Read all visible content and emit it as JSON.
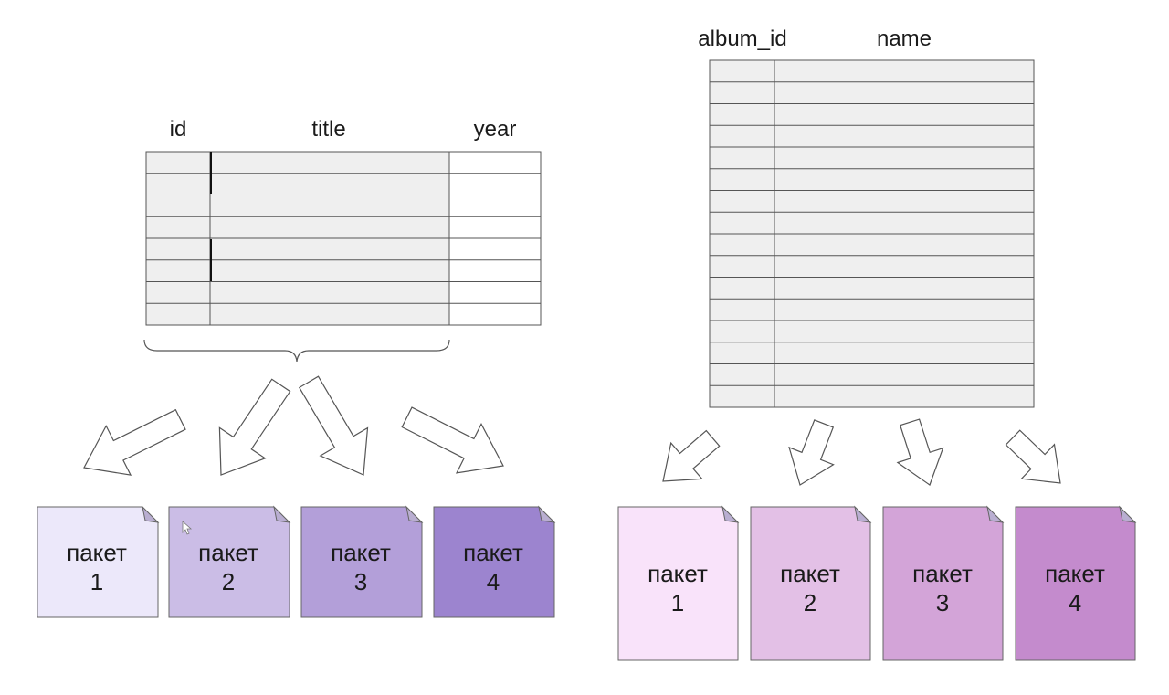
{
  "left_table": {
    "columns": [
      "id",
      "title",
      "year"
    ],
    "row_count": 8,
    "packets": [
      {
        "word": "пакет",
        "number": "1",
        "color": "#ece8fa"
      },
      {
        "word": "пакет",
        "number": "2",
        "color": "#cbbde6"
      },
      {
        "word": "пакет",
        "number": "3",
        "color": "#b39fd9"
      },
      {
        "word": "пакет",
        "number": "4",
        "color": "#9c84cf"
      }
    ]
  },
  "right_table": {
    "columns": [
      "album_id",
      "name"
    ],
    "row_count": 16,
    "packets": [
      {
        "word": "пакет",
        "number": "1",
        "color": "#f9e3fa"
      },
      {
        "word": "пакет",
        "number": "2",
        "color": "#e3c0e6"
      },
      {
        "word": "пакет",
        "number": "3",
        "color": "#d3a4d8"
      },
      {
        "word": "пакет",
        "number": "4",
        "color": "#c48bcd"
      }
    ]
  },
  "colors": {
    "cell_fill": "#efefef",
    "cell_line": "#555555",
    "year_fill": "#ffffff",
    "fold_fill": "#b9aed1",
    "packet_border": "#666666"
  }
}
